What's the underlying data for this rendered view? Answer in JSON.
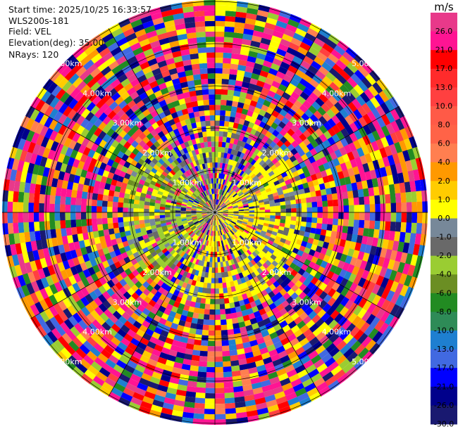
{
  "info": {
    "start_time": "Start time: 2025/10/25 16:33:57",
    "site": "WLS200s-181",
    "field": "Field: VEL",
    "elevation": "Elevation(deg): 35.00",
    "nrays": "NRays: 120"
  },
  "chart_data": {
    "type": "heatmap",
    "projection": "polar-ppi",
    "n_rays": 120,
    "range_rings_km": [
      1,
      2,
      3,
      4,
      5
    ],
    "range_ring_labels": [
      "1.00km",
      "2.00km",
      "3.00km",
      "4.00km",
      "5.00km"
    ],
    "colorbar": {
      "unit": "m/s",
      "ticks": [
        "26.0",
        "21.0",
        "17.0",
        "13.0",
        "10.0",
        "8.0",
        "6.0",
        "4.0",
        "2.0",
        "1.0",
        "0.0",
        "-1.0",
        "-2.0",
        "-4.0",
        "-6.0",
        "-8.0",
        "-10.0",
        "-13.0",
        "-17.0",
        "-21.0",
        "-26.0",
        "-30.0"
      ],
      "colors": [
        "#e8398a",
        "#ff1493",
        "#ff0000",
        "#ff2b2b",
        "#ff4040",
        "#ff5a47",
        "#ff6347",
        "#ff7f50",
        "#ff9900",
        "#ffcc00",
        "#ffff00",
        "#778899",
        "#696969",
        "#9acd32",
        "#6b8e23",
        "#228b22",
        "#2e8b57",
        "#1e7fd0",
        "#4169e1",
        "#0000ff",
        "#00008b",
        "#191970"
      ]
    }
  }
}
